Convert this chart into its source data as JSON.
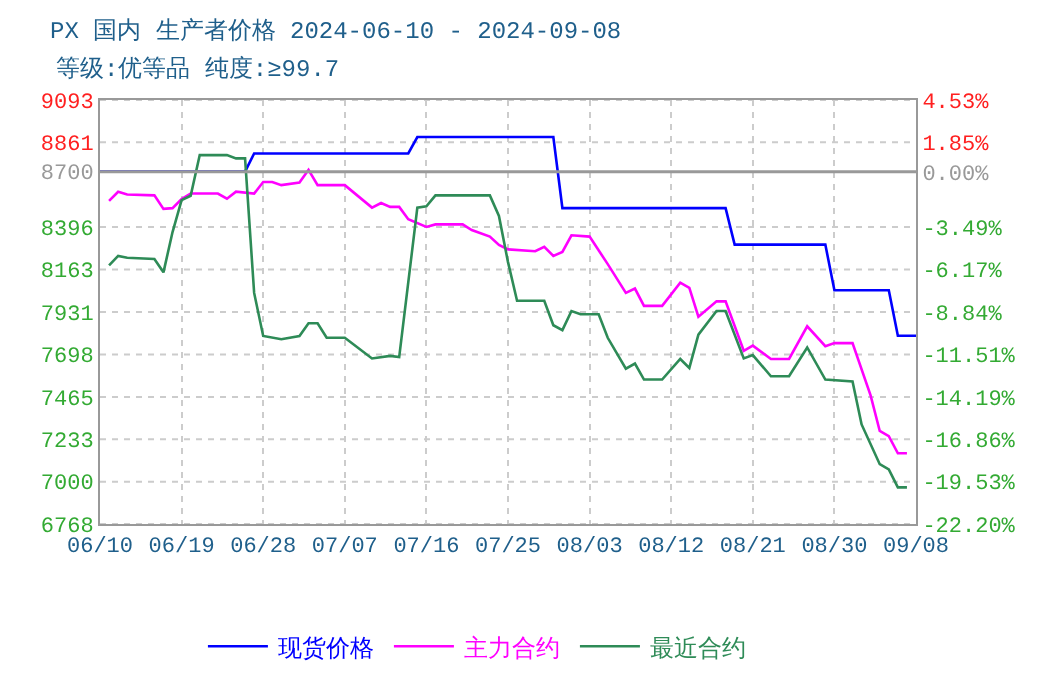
{
  "chart_data": {
    "type": "line",
    "title": "PX 国内 生产者价格 2024-06-10 - 2024-09-08",
    "subtitle": "等级:优等品 纯度:≥99.7",
    "xlim": [
      "2024-06-10",
      "2024-09-08"
    ],
    "xticks": [
      {
        "value": "2024-06-10",
        "label": "06/10"
      },
      {
        "value": "2024-06-19",
        "label": "06/19"
      },
      {
        "value": "2024-06-28",
        "label": "06/28"
      },
      {
        "value": "2024-07-07",
        "label": "07/07"
      },
      {
        "value": "2024-07-16",
        "label": "07/16"
      },
      {
        "value": "2024-07-25",
        "label": "07/25"
      },
      {
        "value": "2024-08-03",
        "label": "08/03"
      },
      {
        "value": "2024-08-12",
        "label": "08/12"
      },
      {
        "value": "2024-08-21",
        "label": "08/21"
      },
      {
        "value": "2024-08-30",
        "label": "08/30"
      },
      {
        "value": "2024-09-08",
        "label": "09/08"
      }
    ],
    "ylim": [
      6768,
      9093
    ],
    "yticks": [
      6768,
      7000,
      7233,
      7465,
      7698,
      7931,
      8163,
      8396,
      8700,
      8861,
      9093
    ],
    "y2lim": [
      -22.2,
      4.53
    ],
    "y2ticks": [
      {
        "value": -22.2,
        "label": "-22.20%"
      },
      {
        "value": -19.53,
        "label": "-19.53%"
      },
      {
        "value": -16.86,
        "label": "-16.86%"
      },
      {
        "value": -14.19,
        "label": "-14.19%"
      },
      {
        "value": -11.51,
        "label": "-11.51%"
      },
      {
        "value": -8.84,
        "label": "-8.84%"
      },
      {
        "value": -6.17,
        "label": "-6.17%"
      },
      {
        "value": -3.49,
        "label": "-3.49%"
      },
      {
        "value": 0.0,
        "label": "0.00%"
      },
      {
        "value": 1.85,
        "label": "1.85%"
      },
      {
        "value": 4.53,
        "label": "4.53%"
      }
    ],
    "ref_lines": [
      {
        "axis": "y",
        "value": 8700,
        "color": "#999999",
        "line_style": "solid"
      }
    ],
    "grid": true,
    "legend": "bottom",
    "marker": "none",
    "line_style": "solid",
    "series": [
      {
        "name": "现货价格",
        "color": "#0000ff",
        "x": [
          "2024-06-10",
          "2024-06-26",
          "2024-06-27",
          "2024-07-14",
          "2024-07-15",
          "2024-07-30",
          "2024-07-31",
          "2024-08-18",
          "2024-08-19",
          "2024-08-29",
          "2024-08-30",
          "2024-09-05",
          "2024-09-06",
          "2024-09-08"
        ],
        "values": [
          8700,
          8700,
          8800,
          8800,
          8890,
          8890,
          8500,
          8500,
          8300,
          8300,
          8050,
          8050,
          7800,
          7800
        ]
      },
      {
        "name": "主力合约",
        "color": "#ff00ff",
        "x": [
          "2024-06-11",
          "2024-06-12",
          "2024-06-13",
          "2024-06-16",
          "2024-06-17",
          "2024-06-18",
          "2024-06-19",
          "2024-06-20",
          "2024-06-23",
          "2024-06-24",
          "2024-06-25",
          "2024-06-27",
          "2024-06-28",
          "2024-06-29",
          "2024-06-30",
          "2024-07-02",
          "2024-07-03",
          "2024-07-04",
          "2024-07-07",
          "2024-07-10",
          "2024-07-11",
          "2024-07-12",
          "2024-07-13",
          "2024-07-14",
          "2024-07-16",
          "2024-07-17",
          "2024-07-20",
          "2024-07-21",
          "2024-07-23",
          "2024-07-24",
          "2024-07-25",
          "2024-07-28",
          "2024-07-29",
          "2024-07-30",
          "2024-07-31",
          "2024-08-01",
          "2024-08-03",
          "2024-08-05",
          "2024-08-07",
          "2024-08-08",
          "2024-08-09",
          "2024-08-11",
          "2024-08-13",
          "2024-08-14",
          "2024-08-15",
          "2024-08-17",
          "2024-08-18",
          "2024-08-20",
          "2024-08-21",
          "2024-08-23",
          "2024-08-25",
          "2024-08-27",
          "2024-08-29",
          "2024-08-30",
          "2024-09-01",
          "2024-09-03",
          "2024-09-04",
          "2024-09-05",
          "2024-09-06",
          "2024-09-07"
        ],
        "values": [
          8540,
          8590,
          8575,
          8570,
          8496,
          8500,
          8550,
          8580,
          8580,
          8552,
          8590,
          8580,
          8643,
          8643,
          8626,
          8640,
          8710,
          8626,
          8626,
          8503,
          8528,
          8507,
          8507,
          8439,
          8397,
          8411,
          8411,
          8380,
          8344,
          8298,
          8274,
          8264,
          8288,
          8238,
          8260,
          8351,
          8344,
          8193,
          8035,
          8059,
          7964,
          7964,
          8091,
          8063,
          7905,
          7989,
          7989,
          7718,
          7746,
          7673,
          7673,
          7852,
          7743,
          7760,
          7760,
          7472,
          7278,
          7250,
          7156,
          7156
        ]
      },
      {
        "name": "最近合约",
        "color": "#2e8b57",
        "x": [
          "2024-06-11",
          "2024-06-12",
          "2024-06-13",
          "2024-06-16",
          "2024-06-17",
          "2024-06-18",
          "2024-06-19",
          "2024-06-20",
          "2024-06-21",
          "2024-06-24",
          "2024-06-25",
          "2024-06-26",
          "2024-06-27",
          "2024-06-28",
          "2024-06-30",
          "2024-07-02",
          "2024-07-03",
          "2024-07-04",
          "2024-07-05",
          "2024-07-07",
          "2024-07-10",
          "2024-07-12",
          "2024-07-13",
          "2024-07-15",
          "2024-07-16",
          "2024-07-17",
          "2024-07-23",
          "2024-07-24",
          "2024-07-25",
          "2024-07-26",
          "2024-07-29",
          "2024-07-30",
          "2024-07-31",
          "2024-08-01",
          "2024-08-02",
          "2024-08-04",
          "2024-08-05",
          "2024-08-07",
          "2024-08-08",
          "2024-08-09",
          "2024-08-11",
          "2024-08-13",
          "2024-08-14",
          "2024-08-15",
          "2024-08-17",
          "2024-08-18",
          "2024-08-20",
          "2024-08-21",
          "2024-08-23",
          "2024-08-25",
          "2024-08-27",
          "2024-08-29",
          "2024-09-01",
          "2024-09-02",
          "2024-09-04",
          "2024-09-05",
          "2024-09-06",
          "2024-09-07"
        ],
        "values": [
          8186,
          8238,
          8228,
          8221,
          8148,
          8369,
          8544,
          8568,
          8791,
          8791,
          8773,
          8773,
          8035,
          7799,
          7781,
          7799,
          7869,
          7869,
          7789,
          7789,
          7676,
          7690,
          7683,
          8503,
          8510,
          8570,
          8570,
          8457,
          8204,
          7992,
          7992,
          7858,
          7831,
          7936,
          7918,
          7918,
          7789,
          7620,
          7648,
          7560,
          7560,
          7673,
          7624,
          7806,
          7936,
          7936,
          7676,
          7694,
          7578,
          7578,
          7736,
          7560,
          7550,
          7314,
          7096,
          7067,
          6969,
          6969
        ]
      }
    ]
  }
}
